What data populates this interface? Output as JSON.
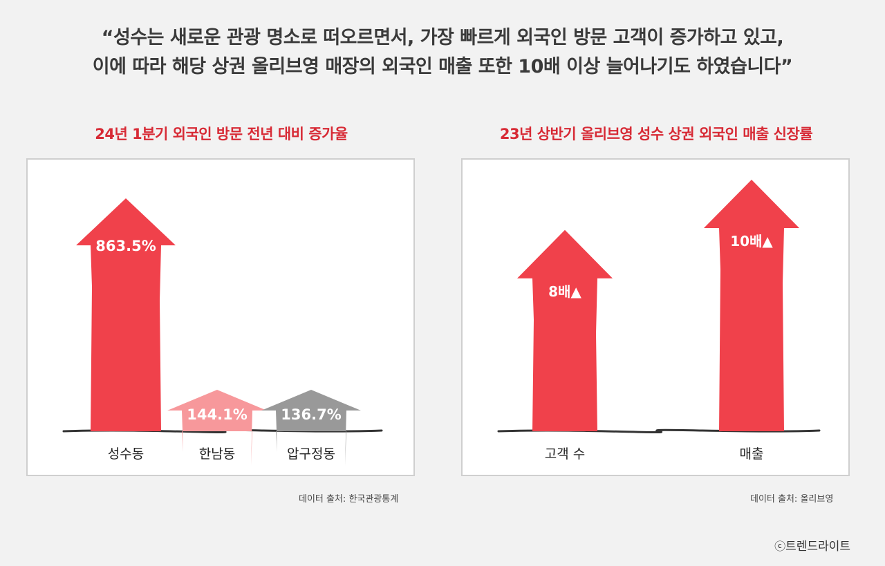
{
  "headline": {
    "line1": "“성수는 새로운 관광 명소로 떠오르면서, 가장 빠르게 외국인 방문 고객이 증가하고 있고,",
    "line2": "이에 따라 해당 상권 올리브영 매장의 외국인 매출 또한 10배 이상 늘어나기도 하였습니다”"
  },
  "chart_data": [
    {
      "type": "bar",
      "title": "24년 1분기 외국인 방문 전년 대비 증가율",
      "categories": [
        "성수동",
        "한남동",
        "압구정동"
      ],
      "values": [
        863.5,
        144.1,
        136.7
      ],
      "labels": [
        "863.5%",
        "144.1%",
        "136.7%"
      ],
      "colors": [
        "#f0414b",
        "#f7989b",
        "#999999"
      ],
      "source": "데이터 출처: 한국관광통계"
    },
    {
      "type": "bar",
      "title": "23년 상반기 올리브영 성수 상권 외국인 매출 신장률",
      "categories": [
        "고객 수",
        "매출"
      ],
      "values": [
        8,
        10
      ],
      "labels": [
        "8배▲",
        "10배▲"
      ],
      "colors": [
        "#f0414b",
        "#f0414b"
      ],
      "source": "데이터 출처: 올리브영"
    }
  ],
  "copyright": {
    "mark": "ⓒ",
    "text": "트렌드라이트"
  }
}
